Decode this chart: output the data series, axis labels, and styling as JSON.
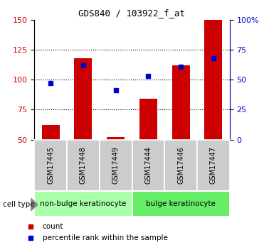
{
  "title": "GDS840 / 103922_f_at",
  "samples": [
    "GSM17445",
    "GSM17448",
    "GSM17449",
    "GSM17444",
    "GSM17446",
    "GSM17447"
  ],
  "counts": [
    62,
    118,
    52,
    84,
    112,
    150
  ],
  "percentile_ranks": [
    97,
    112,
    91,
    103,
    111,
    118
  ],
  "ylim": [
    50,
    150
  ],
  "yticks_left": [
    50,
    75,
    100,
    125,
    150
  ],
  "yticks_right_labels": [
    "0",
    "25",
    "50",
    "75",
    "100%"
  ],
  "ylabel_left_color": "#cc0000",
  "ylabel_right_color": "#0000cc",
  "bar_color": "#cc0000",
  "dot_color": "#0000cc",
  "bar_bottom": 50,
  "group_info": [
    {
      "label": "non-bulge keratinocyte",
      "start": 0,
      "end": 2,
      "color": "#aaffaa"
    },
    {
      "label": "bulge keratinocyte",
      "start": 3,
      "end": 5,
      "color": "#66ee66"
    }
  ],
  "cell_type_label": "cell type",
  "legend_count_label": "count",
  "legend_pct_label": "percentile rank within the sample",
  "sample_label_bg": "#cccccc",
  "grid_yticks": [
    75,
    100,
    125
  ],
  "title_fontsize": 9,
  "tick_fontsize": 8,
  "label_fontsize": 7,
  "group_fontsize": 7.5,
  "legend_fontsize": 7.5
}
